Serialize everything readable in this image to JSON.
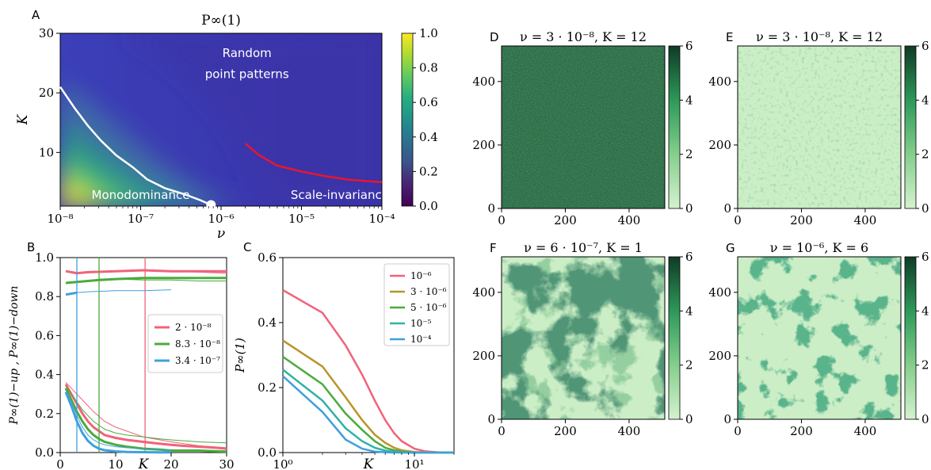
{
  "chart_data": [
    {
      "panel": "A",
      "type": "heatmap",
      "title": "P∞(1)",
      "xlabel": "ν",
      "ylabel": "K",
      "x_scale": "log",
      "xlim": [
        1e-08,
        0.0001
      ],
      "ylim": [
        1,
        30
      ],
      "xticks": [
        {
          "v": 1e-08,
          "label": "10⁻⁸"
        },
        {
          "v": 1e-07,
          "label": "10⁻⁷"
        },
        {
          "v": 1e-06,
          "label": "10⁻⁶"
        },
        {
          "v": 1e-05,
          "label": "10⁻⁵"
        },
        {
          "v": 0.0001,
          "label": "10⁻⁴"
        }
      ],
      "yticks": [
        10,
        20,
        30
      ],
      "colorbar": {
        "range": [
          0,
          1
        ],
        "ticks": [
          "0.0",
          "0.2",
          "0.4",
          "0.6",
          "0.8",
          "1.0"
        ],
        "colormap": "viridis"
      },
      "boundary_curve": {
        "color": "#ffffff",
        "x": [
          1e-08,
          1.5e-08,
          2.2e-08,
          3.2e-08,
          5e-08,
          8e-08,
          1.2e-07,
          2e-07,
          3.5e-07,
          5.5e-07,
          7.5e-07
        ],
        "y": [
          21,
          17.5,
          14.5,
          12,
          9.5,
          7.5,
          5.5,
          4,
          3,
          2,
          1.2
        ]
      },
      "critical_point": {
        "x": 7.5e-07,
        "y": 1.2
      },
      "scale_invariance_curve": {
        "color": "#e8162d",
        "x": [
          2e-06,
          3e-06,
          5e-06,
          1e-05,
          2e-05,
          4e-05,
          0.0001
        ],
        "y": [
          11.5,
          9.5,
          7.8,
          6.8,
          6,
          5.4,
          5
        ]
      },
      "annotations": [
        {
          "text": "Random",
          "x": 2.1e-06,
          "y": 26
        },
        {
          "text": "point patterns",
          "x": 2.1e-06,
          "y": 22.5
        },
        {
          "text": "Monodominance",
          "x": 1e-07,
          "y": 2.2
        },
        {
          "text": "Scale-invariance",
          "x": 3e-05,
          "y": 2.2
        }
      ]
    },
    {
      "panel": "B",
      "type": "line",
      "xlabel": "K",
      "ylabel": "P∞(1)−up , P∞(1)−down",
      "xlim": [
        0,
        30
      ],
      "ylim": [
        0,
        1
      ],
      "xticks": [
        0,
        10,
        20,
        30
      ],
      "yticks": [
        0.0,
        0.2,
        0.4,
        0.6,
        0.8,
        1.0
      ],
      "legend": "center-right",
      "series": [
        {
          "name": "2 · 10⁻⁸",
          "color": "#f0637a",
          "vline": 15.3,
          "up_thick": {
            "x": [
              1,
              2,
              3,
              5,
              10,
              15,
              20,
              25,
              30
            ],
            "y": [
              0.93,
              0.925,
              0.92,
              0.925,
              0.93,
              0.935,
              0.93,
              0.93,
              0.93
            ]
          },
          "up_thin": {
            "x": [
              15.3,
              20,
              25,
              30
            ],
            "y": [
              0.935,
              0.93,
              0.925,
              0.92
            ]
          },
          "down_thick": {
            "x": [
              1,
              2,
              3,
              4,
              5,
              6,
              7,
              8,
              10,
              12,
              15,
              18,
              20,
              22,
              25,
              28,
              30
            ],
            "y": [
              0.35,
              0.3,
              0.25,
              0.2,
              0.16,
              0.13,
              0.11,
              0.09,
              0.075,
              0.065,
              0.055,
              0.045,
              0.04,
              0.035,
              0.03,
              0.025,
              0.02
            ]
          },
          "down_thin": {
            "x": [
              1,
              2,
              3,
              4,
              5,
              6,
              8,
              10,
              12,
              15,
              18,
              20,
              25,
              30
            ],
            "y": [
              0.36,
              0.33,
              0.3,
              0.27,
              0.24,
              0.21,
              0.16,
              0.13,
              0.11,
              0.08,
              0.065,
              0.055,
              0.035,
              0.025
            ]
          }
        },
        {
          "name": "8.3 · 10⁻⁸",
          "color": "#4aab3c",
          "vline": 7,
          "up_thick": {
            "x": [
              1,
              3,
              5,
              7,
              10,
              15,
              20,
              25,
              30
            ],
            "y": [
              0.87,
              0.875,
              0.88,
              0.885,
              0.89,
              0.895,
              0.895,
              0.895,
              0.895
            ]
          },
          "up_thin": {
            "x": [
              7,
              10,
              15,
              20,
              25,
              30
            ],
            "y": [
              0.89,
              0.89,
              0.885,
              0.885,
              0.88,
              0.88
            ]
          },
          "down_thick": {
            "x": [
              1,
              2,
              3,
              4,
              5,
              6,
              7,
              8,
              10,
              12,
              15,
              18,
              20,
              25,
              30
            ],
            "y": [
              0.33,
              0.27,
              0.21,
              0.16,
              0.12,
              0.09,
              0.07,
              0.055,
              0.04,
              0.03,
              0.02,
              0.015,
              0.01,
              0.01,
              0.005
            ]
          },
          "down_thin": {
            "x": [
              1,
              2,
              3,
              4,
              5,
              6,
              7,
              8,
              10,
              12,
              15,
              18,
              20,
              25,
              30
            ],
            "y": [
              0.34,
              0.3,
              0.26,
              0.22,
              0.19,
              0.16,
              0.14,
              0.12,
              0.1,
              0.09,
              0.08,
              0.07,
              0.065,
              0.055,
              0.05
            ]
          }
        },
        {
          "name": "3.4 · 10⁻⁷",
          "color": "#3fa0dc",
          "vline": 3,
          "up_thick": {
            "x": [
              1,
              2,
              3
            ],
            "y": [
              0.81,
              0.815,
              0.82
            ]
          },
          "up_thin": {
            "x": [
              3,
              5,
              10,
              15,
              20
            ],
            "y": [
              0.82,
              0.825,
              0.83,
              0.83,
              0.835
            ]
          },
          "down_thick": {
            "x": [
              1,
              2,
              3,
              4,
              5,
              6,
              7,
              8,
              10,
              12,
              15,
              18,
              20
            ],
            "y": [
              0.31,
              0.24,
              0.16,
              0.1,
              0.06,
              0.035,
              0.02,
              0.012,
              0.006,
              0.003,
              0.002,
              0.001,
              0.001
            ]
          },
          "down_thin": {
            "x": [
              1,
              2,
              3,
              4,
              5,
              6,
              7,
              8,
              10,
              12,
              15,
              18,
              20
            ],
            "y": [
              0.32,
              0.26,
              0.19,
              0.13,
              0.09,
              0.065,
              0.05,
              0.04,
              0.03,
              0.025,
              0.02,
              0.015,
              0.012
            ]
          }
        }
      ]
    },
    {
      "panel": "C",
      "type": "line",
      "xlabel": "K",
      "ylabel": "P∞(1)",
      "x_scale": "log",
      "xlim": [
        1,
        20
      ],
      "ylim": [
        0,
        0.6
      ],
      "xticks": [
        {
          "v": 1,
          "label": "10⁰"
        },
        {
          "v": 10,
          "label": "10¹"
        }
      ],
      "yticks": [
        0.0,
        0.2,
        0.4,
        0.6
      ],
      "legend": "top-right",
      "series": [
        {
          "name": "10⁻⁶",
          "color": "#f0637a",
          "x": [
            1,
            2,
            3,
            4,
            5,
            6,
            7,
            8,
            10,
            12,
            15,
            20
          ],
          "y": [
            0.5,
            0.43,
            0.33,
            0.24,
            0.16,
            0.1,
            0.06,
            0.035,
            0.012,
            0.004,
            0.001,
            0.0
          ]
        },
        {
          "name": "3 · 10⁻⁶",
          "color": "#b8942a",
          "x": [
            1,
            2,
            3,
            4,
            5,
            6,
            7,
            8,
            10,
            12,
            15,
            20
          ],
          "y": [
            0.345,
            0.265,
            0.17,
            0.1,
            0.055,
            0.03,
            0.015,
            0.007,
            0.002,
            0.0,
            0.0,
            0.0
          ]
        },
        {
          "name": "5 · 10⁻⁶",
          "color": "#4aab3c",
          "x": [
            1,
            2,
            3,
            4,
            5,
            6,
            7,
            8,
            10,
            12,
            15,
            20
          ],
          "y": [
            0.295,
            0.21,
            0.12,
            0.07,
            0.035,
            0.015,
            0.007,
            0.003,
            0.0,
            0.0,
            0.0,
            0.0
          ]
        },
        {
          "name": "10⁻⁵",
          "color": "#2fb3a6",
          "x": [
            1,
            2,
            3,
            4,
            5,
            6,
            7,
            8,
            10,
            12,
            15,
            20
          ],
          "y": [
            0.255,
            0.16,
            0.075,
            0.035,
            0.015,
            0.006,
            0.002,
            0.0,
            0.0,
            0.0,
            0.0,
            0.0
          ]
        },
        {
          "name": "10⁻⁴",
          "color": "#3fa0dc",
          "x": [
            1,
            2,
            3,
            4,
            5,
            6,
            7,
            8,
            10,
            12,
            15,
            20
          ],
          "y": [
            0.235,
            0.125,
            0.04,
            0.012,
            0.003,
            0.001,
            0.0,
            0.0,
            0.0,
            0.0,
            0.0,
            0.0
          ]
        }
      ]
    },
    {
      "panel": "D",
      "type": "heatmap",
      "title": "ν = 3 · 10⁻⁸,  K = 12",
      "xlim": [
        0,
        512
      ],
      "ylim": [
        0,
        512
      ],
      "xticks": [
        0,
        200,
        400
      ],
      "yticks": [
        0,
        200,
        400
      ],
      "colorbar": {
        "range": [
          0,
          6
        ],
        "ticks": [
          "0",
          "2",
          "4",
          "6"
        ]
      },
      "pattern": "dense"
    },
    {
      "panel": "E",
      "type": "heatmap",
      "title": "ν = 3 · 10⁻⁸,  K = 12",
      "xlim": [
        0,
        512
      ],
      "ylim": [
        0,
        512
      ],
      "xticks": [
        0,
        200,
        400
      ],
      "yticks": [
        0,
        200,
        400
      ],
      "colorbar": {
        "range": [
          0,
          6
        ],
        "ticks": [
          "0",
          "2",
          "4",
          "6"
        ]
      },
      "pattern": "sparse"
    },
    {
      "panel": "F",
      "type": "heatmap",
      "title": "ν = 6 · 10⁻⁷,  K = 1",
      "xlim": [
        0,
        512
      ],
      "ylim": [
        0,
        512
      ],
      "xticks": [
        0,
        200,
        400
      ],
      "yticks": [
        0,
        200,
        400
      ],
      "colorbar": {
        "range": [
          0,
          6
        ],
        "ticks": [
          "0",
          "2",
          "4",
          "6"
        ]
      },
      "pattern": "clusters-large"
    },
    {
      "panel": "G",
      "type": "heatmap",
      "title": "ν = 10⁻⁶,  K = 6",
      "xlim": [
        0,
        512
      ],
      "ylim": [
        0,
        512
      ],
      "xticks": [
        0,
        200,
        400
      ],
      "yticks": [
        0,
        200,
        400
      ],
      "colorbar": {
        "range": [
          0,
          6
        ],
        "ticks": [
          "0",
          "2",
          "4",
          "6"
        ]
      },
      "pattern": "clusters-medium"
    }
  ],
  "panel_labels": [
    "A",
    "B",
    "C",
    "D",
    "E",
    "F",
    "G"
  ]
}
